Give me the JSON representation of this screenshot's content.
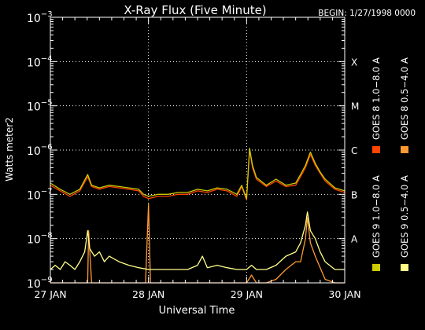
{
  "chart_data": {
    "type": "line",
    "title": "X-Ray Flux (Five Minute)",
    "begin_label": "BEGIN: 1/27/1998 0000",
    "xlabel": "Universal Time",
    "ylabel": "Watts meter2",
    "y_scale": "log",
    "ylim": [
      1e-09,
      0.001
    ],
    "xlim_days": [
      0,
      3
    ],
    "x_tick_labels": [
      "27 JAN",
      "28 JAN",
      "29 JAN",
      "30 JAN"
    ],
    "y_ticks": [
      {
        "value": 1e-09,
        "base": "10",
        "exp": "−9"
      },
      {
        "value": 1e-08,
        "base": "10",
        "exp": "−8"
      },
      {
        "value": 1e-07,
        "base": "10",
        "exp": "−7"
      },
      {
        "value": 1e-06,
        "base": "10",
        "exp": "−6"
      },
      {
        "value": 1e-05,
        "base": "10",
        "exp": "−5"
      },
      {
        "value": 0.0001,
        "base": "10",
        "exp": "−4"
      },
      {
        "value": 0.001,
        "base": "10",
        "exp": "−3"
      }
    ],
    "flare_classes": [
      {
        "label": "A",
        "value": 1e-08
      },
      {
        "label": "B",
        "value": 1e-07
      },
      {
        "label": "C",
        "value": 1e-06
      },
      {
        "label": "M",
        "value": 1e-05
      },
      {
        "label": "X",
        "value": 0.0001
      }
    ],
    "grid": "dotted horizontal at each decade; vertical at day boundaries",
    "legend": [
      {
        "label": "GOES 8  1.0−8.0 A",
        "color": "#ff4400"
      },
      {
        "label": "GOES 8  0.5−4.0 A",
        "color": "#ff9933"
      },
      {
        "label": "GOES 9  1.0−8.0 A",
        "color": "#cccc00"
      },
      {
        "label": "GOES 9  0.5−4.0 A",
        "color": "#ffff88"
      }
    ],
    "legend_placement": "right, vertical",
    "series": [
      {
        "name": "GOES 8  1.0−8.0 A",
        "color": "#ff4400",
        "x": [
          0,
          0.1,
          0.2,
          0.3,
          0.38,
          0.42,
          0.5,
          0.6,
          0.7,
          0.8,
          0.9,
          0.95,
          1.0,
          1.1,
          1.2,
          1.3,
          1.4,
          1.5,
          1.6,
          1.7,
          1.8,
          1.9,
          1.95,
          2.0,
          2.03,
          2.06,
          2.1,
          2.2,
          2.3,
          2.4,
          2.5,
          2.55,
          2.6,
          2.65,
          2.7,
          2.75,
          2.8,
          2.9,
          3.0
        ],
        "y": [
          1.6e-07,
          1.2e-07,
          9e-08,
          1.2e-07,
          2.5e-07,
          1.5e-07,
          1.3e-07,
          1.5e-07,
          1.4e-07,
          1.3e-07,
          1.2e-07,
          9e-08,
          8e-08,
          9e-08,
          9e-08,
          1e-07,
          1e-07,
          1.2e-07,
          1.1e-07,
          1.3e-07,
          1.2e-07,
          9e-08,
          1.5e-07,
          7.5e-08,
          1e-06,
          4e-07,
          2.2e-07,
          1.5e-07,
          2e-07,
          1.5e-07,
          1.6e-07,
          2.5e-07,
          4e-07,
          8e-07,
          4.5e-07,
          3e-07,
          2e-07,
          1.3e-07,
          1.1e-07
        ]
      },
      {
        "name": "GOES 8  0.5−4.0 A",
        "color": "#ff9933",
        "x": [
          0,
          0.2,
          0.38,
          0.39,
          0.42,
          0.5,
          0.9,
          0.97,
          1.0,
          1.02,
          1.2,
          1.5,
          1.9,
          2.0,
          2.05,
          2.1,
          2.2,
          2.3,
          2.4,
          2.5,
          2.55,
          2.6,
          2.62,
          2.65,
          2.7,
          2.8,
          2.9,
          3.0
        ],
        "y": [
          1e-09,
          1e-09,
          1e-09,
          1.5e-08,
          1e-09,
          1e-09,
          1e-09,
          1e-09,
          6e-08,
          1e-09,
          1e-09,
          1e-09,
          1e-09,
          1e-09,
          1.5e-09,
          1e-09,
          1e-09,
          1.2e-09,
          2e-09,
          3e-09,
          3e-09,
          1e-08,
          3e-08,
          8e-09,
          4e-09,
          1.2e-09,
          1e-09,
          1e-09
        ]
      },
      {
        "name": "GOES 9  1.0−8.0 A",
        "color": "#cccc00",
        "x": [
          0,
          0.1,
          0.2,
          0.3,
          0.38,
          0.42,
          0.5,
          0.6,
          0.7,
          0.8,
          0.9,
          0.95,
          1.0,
          1.1,
          1.2,
          1.3,
          1.4,
          1.5,
          1.6,
          1.7,
          1.8,
          1.9,
          1.95,
          2.0,
          2.03,
          2.06,
          2.1,
          2.2,
          2.3,
          2.4,
          2.5,
          2.55,
          2.6,
          2.65,
          2.7,
          2.75,
          2.8,
          2.9,
          3.0
        ],
        "y": [
          1.8e-07,
          1.3e-07,
          1e-07,
          1.3e-07,
          2.8e-07,
          1.6e-07,
          1.4e-07,
          1.6e-07,
          1.5e-07,
          1.4e-07,
          1.3e-07,
          1e-07,
          9e-08,
          1e-07,
          1e-07,
          1.1e-07,
          1.1e-07,
          1.3e-07,
          1.2e-07,
          1.4e-07,
          1.3e-07,
          1e-07,
          1.6e-07,
          8e-08,
          1.1e-06,
          4.5e-07,
          2.4e-07,
          1.6e-07,
          2.2e-07,
          1.6e-07,
          1.8e-07,
          2.8e-07,
          4.5e-07,
          9e-07,
          5e-07,
          3.2e-07,
          2.2e-07,
          1.4e-07,
          1.2e-07
        ]
      },
      {
        "name": "GOES 9  0.5−4.0 A",
        "color": "#ffff88",
        "x": [
          0,
          0.05,
          0.1,
          0.15,
          0.2,
          0.25,
          0.3,
          0.35,
          0.38,
          0.4,
          0.45,
          0.5,
          0.55,
          0.6,
          0.7,
          0.8,
          0.9,
          1.0,
          1.1,
          1.2,
          1.3,
          1.4,
          1.5,
          1.55,
          1.6,
          1.7,
          1.8,
          1.9,
          2.0,
          2.05,
          2.1,
          2.2,
          2.3,
          2.4,
          2.5,
          2.55,
          2.6,
          2.62,
          2.65,
          2.7,
          2.75,
          2.8,
          2.9,
          3.0
        ],
        "y": [
          2e-09,
          2.5e-09,
          2e-09,
          3e-09,
          2.5e-09,
          2e-09,
          3e-09,
          5e-09,
          1.5e-08,
          6e-09,
          4e-09,
          5e-09,
          3e-09,
          4e-09,
          3e-09,
          2.5e-09,
          2.2e-09,
          2e-09,
          2e-09,
          2e-09,
          2e-09,
          2e-09,
          2.5e-09,
          4e-09,
          2.2e-09,
          2.5e-09,
          2.2e-09,
          2e-09,
          2e-09,
          2.5e-09,
          2e-09,
          2e-09,
          2.5e-09,
          4e-09,
          5e-09,
          8e-09,
          2e-08,
          4e-08,
          1.5e-08,
          1e-08,
          5e-09,
          3e-09,
          2e-09,
          2e-09
        ]
      }
    ]
  }
}
